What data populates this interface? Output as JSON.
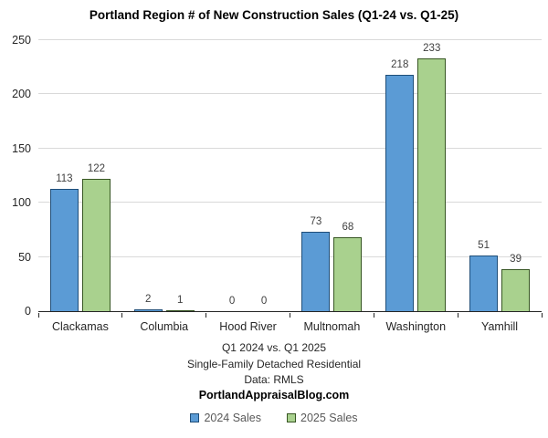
{
  "chart_data": {
    "type": "bar",
    "title": "Portland Region # of New Construction Sales (Q1-24 vs. Q1-25)",
    "categories": [
      "Clackamas",
      "Columbia",
      "Hood River",
      "Multnomah",
      "Washington",
      "Yamhill"
    ],
    "series": [
      {
        "name": "2024 Sales",
        "values": [
          113,
          2,
          0,
          73,
          218,
          51
        ],
        "fill": "#5B9BD5",
        "border": "#1F4E79"
      },
      {
        "name": "2025 Sales",
        "values": [
          122,
          1,
          0,
          68,
          233,
          39
        ],
        "fill": "#A9D18E",
        "border": "#375623"
      }
    ],
    "ylim": [
      0,
      250
    ],
    "ytick_step": 50,
    "grid": true,
    "data_labels": true,
    "legend_position": "bottom",
    "xlabel": "",
    "ylabel": ""
  },
  "footer": {
    "line1": "Q1 2024 vs. Q1 2025",
    "line2": "Single-Family Detached Residential",
    "line3": "Data: RMLS",
    "line4": "PortlandAppraisalBlog.com"
  },
  "colors": {
    "background": "#FFFFFF",
    "gridline": "#D9D9D9",
    "axis": "#262626",
    "tick_label": "#262626",
    "data_label": "#404040",
    "legend_text": "#595959",
    "title": "#000000"
  }
}
